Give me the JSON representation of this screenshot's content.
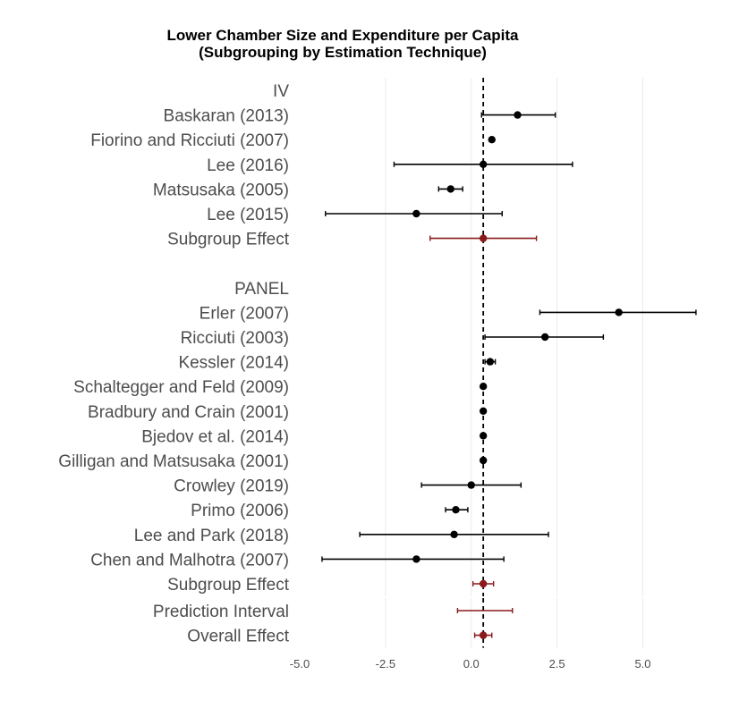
{
  "chart_data": {
    "type": "forest",
    "title": "Lower Chamber Size and Expenditure per Capita",
    "subtitle": "(Subgrouping by Estimation Technique)",
    "xlim": [
      -5.0,
      6.5
    ],
    "x_ticks": [
      "-5.0",
      "-2.5",
      "0.0",
      "2.5",
      "5.0"
    ],
    "x_tick_values": [
      -5.0,
      -2.5,
      0.0,
      2.5,
      5.0
    ],
    "reference_line": 0.35,
    "grid": true,
    "colors": {
      "study": "#000000",
      "summary": "#8b1a1a",
      "grid": "#ebebeb",
      "text": "#4d4d4d"
    },
    "panels": [
      {
        "rows": [
          {
            "label": "IV",
            "kind": "header"
          },
          {
            "label": "Baskaran (2013)",
            "kind": "study",
            "estimate": 1.35,
            "lower": 0.3,
            "upper": 2.45
          },
          {
            "label": "Fiorino and Ricciuti (2007)",
            "kind": "study",
            "estimate": 0.6,
            "lower": 0.55,
            "upper": 0.65
          },
          {
            "label": "Lee (2016)",
            "kind": "study",
            "estimate": 0.35,
            "lower": -2.25,
            "upper": 2.95
          },
          {
            "label": "Matsusaka (2005)",
            "kind": "study",
            "estimate": -0.6,
            "lower": -0.95,
            "upper": -0.25
          },
          {
            "label": "Lee (2015)",
            "kind": "study",
            "estimate": -1.6,
            "lower": -4.25,
            "upper": 0.9
          },
          {
            "label": "Subgroup Effect",
            "kind": "summary",
            "estimate": 0.35,
            "lower": -1.2,
            "upper": 1.9
          },
          {
            "label": "",
            "kind": "spacer"
          },
          {
            "label": "PANEL",
            "kind": "header"
          },
          {
            "label": "Erler (2007)",
            "kind": "study",
            "estimate": 4.3,
            "lower": 2.0,
            "upper": 6.55
          },
          {
            "label": "Ricciuti (2003)",
            "kind": "study",
            "estimate": 2.15,
            "lower": 0.4,
            "upper": 3.85
          },
          {
            "label": "Kessler (2014)",
            "kind": "study",
            "estimate": 0.55,
            "lower": 0.4,
            "upper": 0.7
          },
          {
            "label": "Schaltegger and Feld (2009)",
            "kind": "study",
            "estimate": 0.35,
            "lower": 0.3,
            "upper": 0.4
          },
          {
            "label": "Bradbury and Crain (2001)",
            "kind": "study",
            "estimate": 0.35,
            "lower": 0.3,
            "upper": 0.4
          },
          {
            "label": "Bjedov et al. (2014)",
            "kind": "study",
            "estimate": 0.35,
            "lower": 0.3,
            "upper": 0.4
          },
          {
            "label": "Gilligan and Matsusaka (2001)",
            "kind": "study",
            "estimate": 0.35,
            "lower": 0.3,
            "upper": 0.4
          },
          {
            "label": "Crowley (2019)",
            "kind": "study",
            "estimate": 0.0,
            "lower": -1.45,
            "upper": 1.45
          },
          {
            "label": "Primo (2006)",
            "kind": "study",
            "estimate": -0.45,
            "lower": -0.75,
            "upper": -0.1
          },
          {
            "label": "Lee and Park (2018)",
            "kind": "study",
            "estimate": -0.5,
            "lower": -3.25,
            "upper": 2.25
          },
          {
            "label": "Chen and Malhotra (2007)",
            "kind": "study",
            "estimate": -1.6,
            "lower": -4.35,
            "upper": 0.95
          },
          {
            "label": "Subgroup Effect",
            "kind": "summary",
            "estimate": 0.35,
            "lower": 0.05,
            "upper": 0.65
          }
        ]
      },
      {
        "rows": [
          {
            "label": "Prediction Interval",
            "kind": "interval",
            "lower": -0.4,
            "upper": 1.2
          },
          {
            "label": "Overall Effect",
            "kind": "summary",
            "estimate": 0.35,
            "lower": 0.1,
            "upper": 0.6
          }
        ]
      }
    ]
  }
}
